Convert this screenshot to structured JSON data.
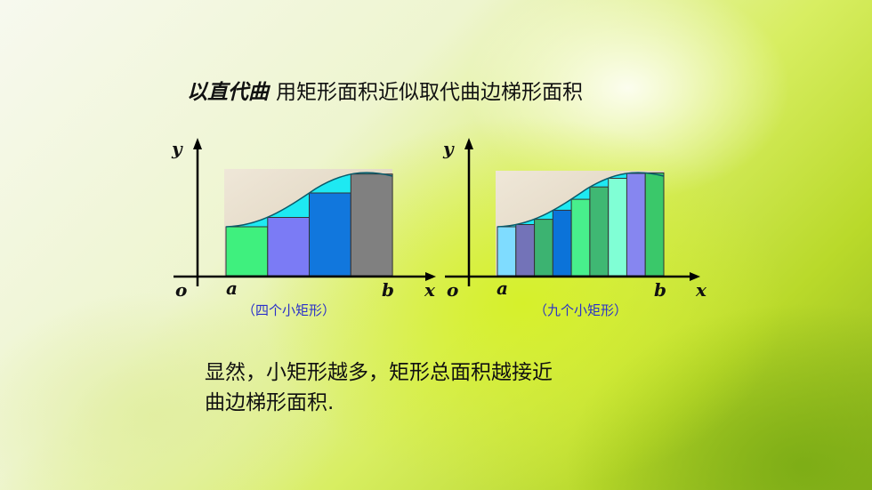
{
  "title": {
    "lead": "以直代曲",
    "text": "用矩形面积近似取代曲边梯形面积"
  },
  "diagrams": [
    {
      "caption": "（四个小矩形）",
      "axis": {
        "y": "y",
        "x": "x",
        "origin": "o",
        "a": "a",
        "b": "b"
      },
      "rect_colors": [
        "#3ff07e",
        "#7b7bf5",
        "#1177dd",
        "#808080"
      ]
    },
    {
      "caption": "（九个小矩形）",
      "axis": {
        "y": "y",
        "x": "x",
        "origin": "o",
        "a": "a",
        "b": "b"
      },
      "rect_colors": [
        "#7fdcff",
        "#7373b8",
        "#3cb371",
        "#0b73d9",
        "#48ef8c",
        "#3fb873",
        "#80ffd5",
        "#8686f0",
        "#3ac86a"
      ]
    }
  ],
  "conclusion": {
    "line1": "显然，小矩形越多，矩形总面积越接近",
    "line2": "曲边梯形面积."
  }
}
